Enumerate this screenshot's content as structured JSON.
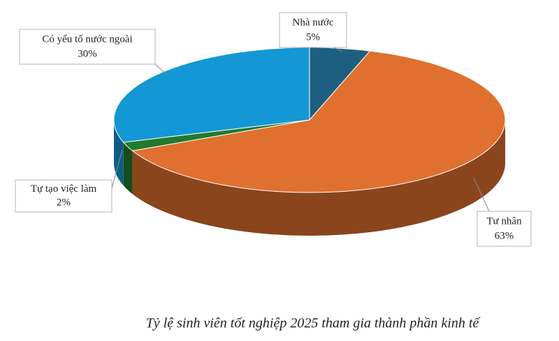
{
  "chart_data": {
    "type": "pie",
    "title": "Tỷ lệ sinh viên tốt nghiệp 2025 tham gia thành phần kinh tế",
    "categories": [
      "Nhà nước",
      "Tư nhân",
      "Tự tạo việc làm",
      "Có yếu tố nước ngoài"
    ],
    "values": [
      5,
      63,
      2,
      30
    ],
    "value_labels": [
      "5%",
      "63%",
      "2%",
      "30%"
    ],
    "colors": [
      "#1d5f80",
      "#e0702f",
      "#237a2c",
      "#1497d5"
    ]
  }
}
